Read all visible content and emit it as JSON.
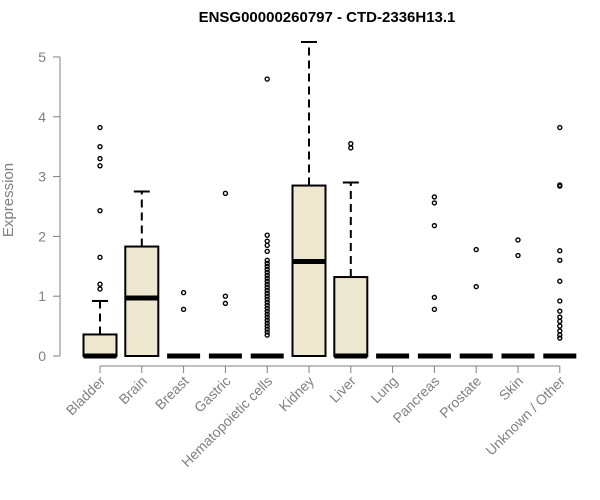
{
  "chart_data": {
    "type": "box",
    "title": "ENSG00000260797 - CTD-2336H13.1",
    "xlabel": "",
    "ylabel": "Expression",
    "ylim": [
      0,
      5.25
    ],
    "y_ticks": [
      0,
      1,
      2,
      3,
      4,
      5
    ],
    "box_fill": "#efe8d0",
    "categories": [
      "Bladder",
      "Brain",
      "Breast",
      "Gastric",
      "Hematopoietic cells",
      "Kidney",
      "Liver",
      "Lung",
      "Pancreas",
      "Prostate",
      "Skin",
      "Unknown / Other"
    ],
    "boxes": [
      {
        "q1": 0,
        "median": 0,
        "q3": 0.36,
        "whisker_low": 0,
        "whisker_high": 0.92,
        "outliers": [
          1.12,
          1.2,
          1.65,
          2.43,
          3.18,
          3.3,
          3.5,
          3.82
        ]
      },
      {
        "q1": 0,
        "median": 0.97,
        "q3": 1.83,
        "whisker_low": 0,
        "whisker_high": 2.75,
        "outliers": []
      },
      {
        "q1": 0,
        "median": 0,
        "q3": 0,
        "whisker_low": 0,
        "whisker_high": 0,
        "outliers": [
          0.78,
          1.06
        ]
      },
      {
        "q1": 0,
        "median": 0,
        "q3": 0,
        "whisker_low": 0,
        "whisker_high": 0,
        "outliers": [
          0.88,
          1.0,
          2.72
        ]
      },
      {
        "q1": 0,
        "median": 0,
        "q3": 0,
        "whisker_low": 0,
        "whisker_high": 0,
        "outliers": [
          0.35,
          0.4,
          0.45,
          0.5,
          0.55,
          0.6,
          0.65,
          0.7,
          0.75,
          0.8,
          0.85,
          0.9,
          0.95,
          1.0,
          1.05,
          1.1,
          1.15,
          1.2,
          1.25,
          1.3,
          1.35,
          1.4,
          1.45,
          1.5,
          1.55,
          1.6,
          1.75,
          1.85,
          1.92,
          2.02,
          4.63
        ]
      },
      {
        "q1": 0,
        "median": 1.58,
        "q3": 2.85,
        "whisker_low": 0,
        "whisker_high": 5.25,
        "outliers": []
      },
      {
        "q1": 0,
        "median": 0,
        "q3": 1.32,
        "whisker_low": 0,
        "whisker_high": 2.9,
        "outliers": [
          3.48,
          3.55
        ]
      },
      {
        "q1": 0,
        "median": 0,
        "q3": 0,
        "whisker_low": 0,
        "whisker_high": 0,
        "outliers": []
      },
      {
        "q1": 0,
        "median": 0,
        "q3": 0,
        "whisker_low": 0,
        "whisker_high": 0,
        "outliers": [
          0.78,
          0.98,
          2.18,
          2.56,
          2.66
        ]
      },
      {
        "q1": 0,
        "median": 0,
        "q3": 0,
        "whisker_low": 0,
        "whisker_high": 0,
        "outliers": [
          1.16,
          1.78
        ]
      },
      {
        "q1": 0,
        "median": 0,
        "q3": 0,
        "whisker_low": 0,
        "whisker_high": 0,
        "outliers": [
          1.68,
          1.94
        ]
      },
      {
        "q1": 0,
        "median": 0,
        "q3": 0,
        "whisker_low": 0,
        "whisker_high": 0,
        "outliers": [
          0.3,
          0.35,
          0.42,
          0.5,
          0.58,
          0.65,
          0.75,
          0.92,
          1.25,
          1.6,
          1.76,
          2.84,
          2.86,
          3.82
        ]
      }
    ]
  }
}
